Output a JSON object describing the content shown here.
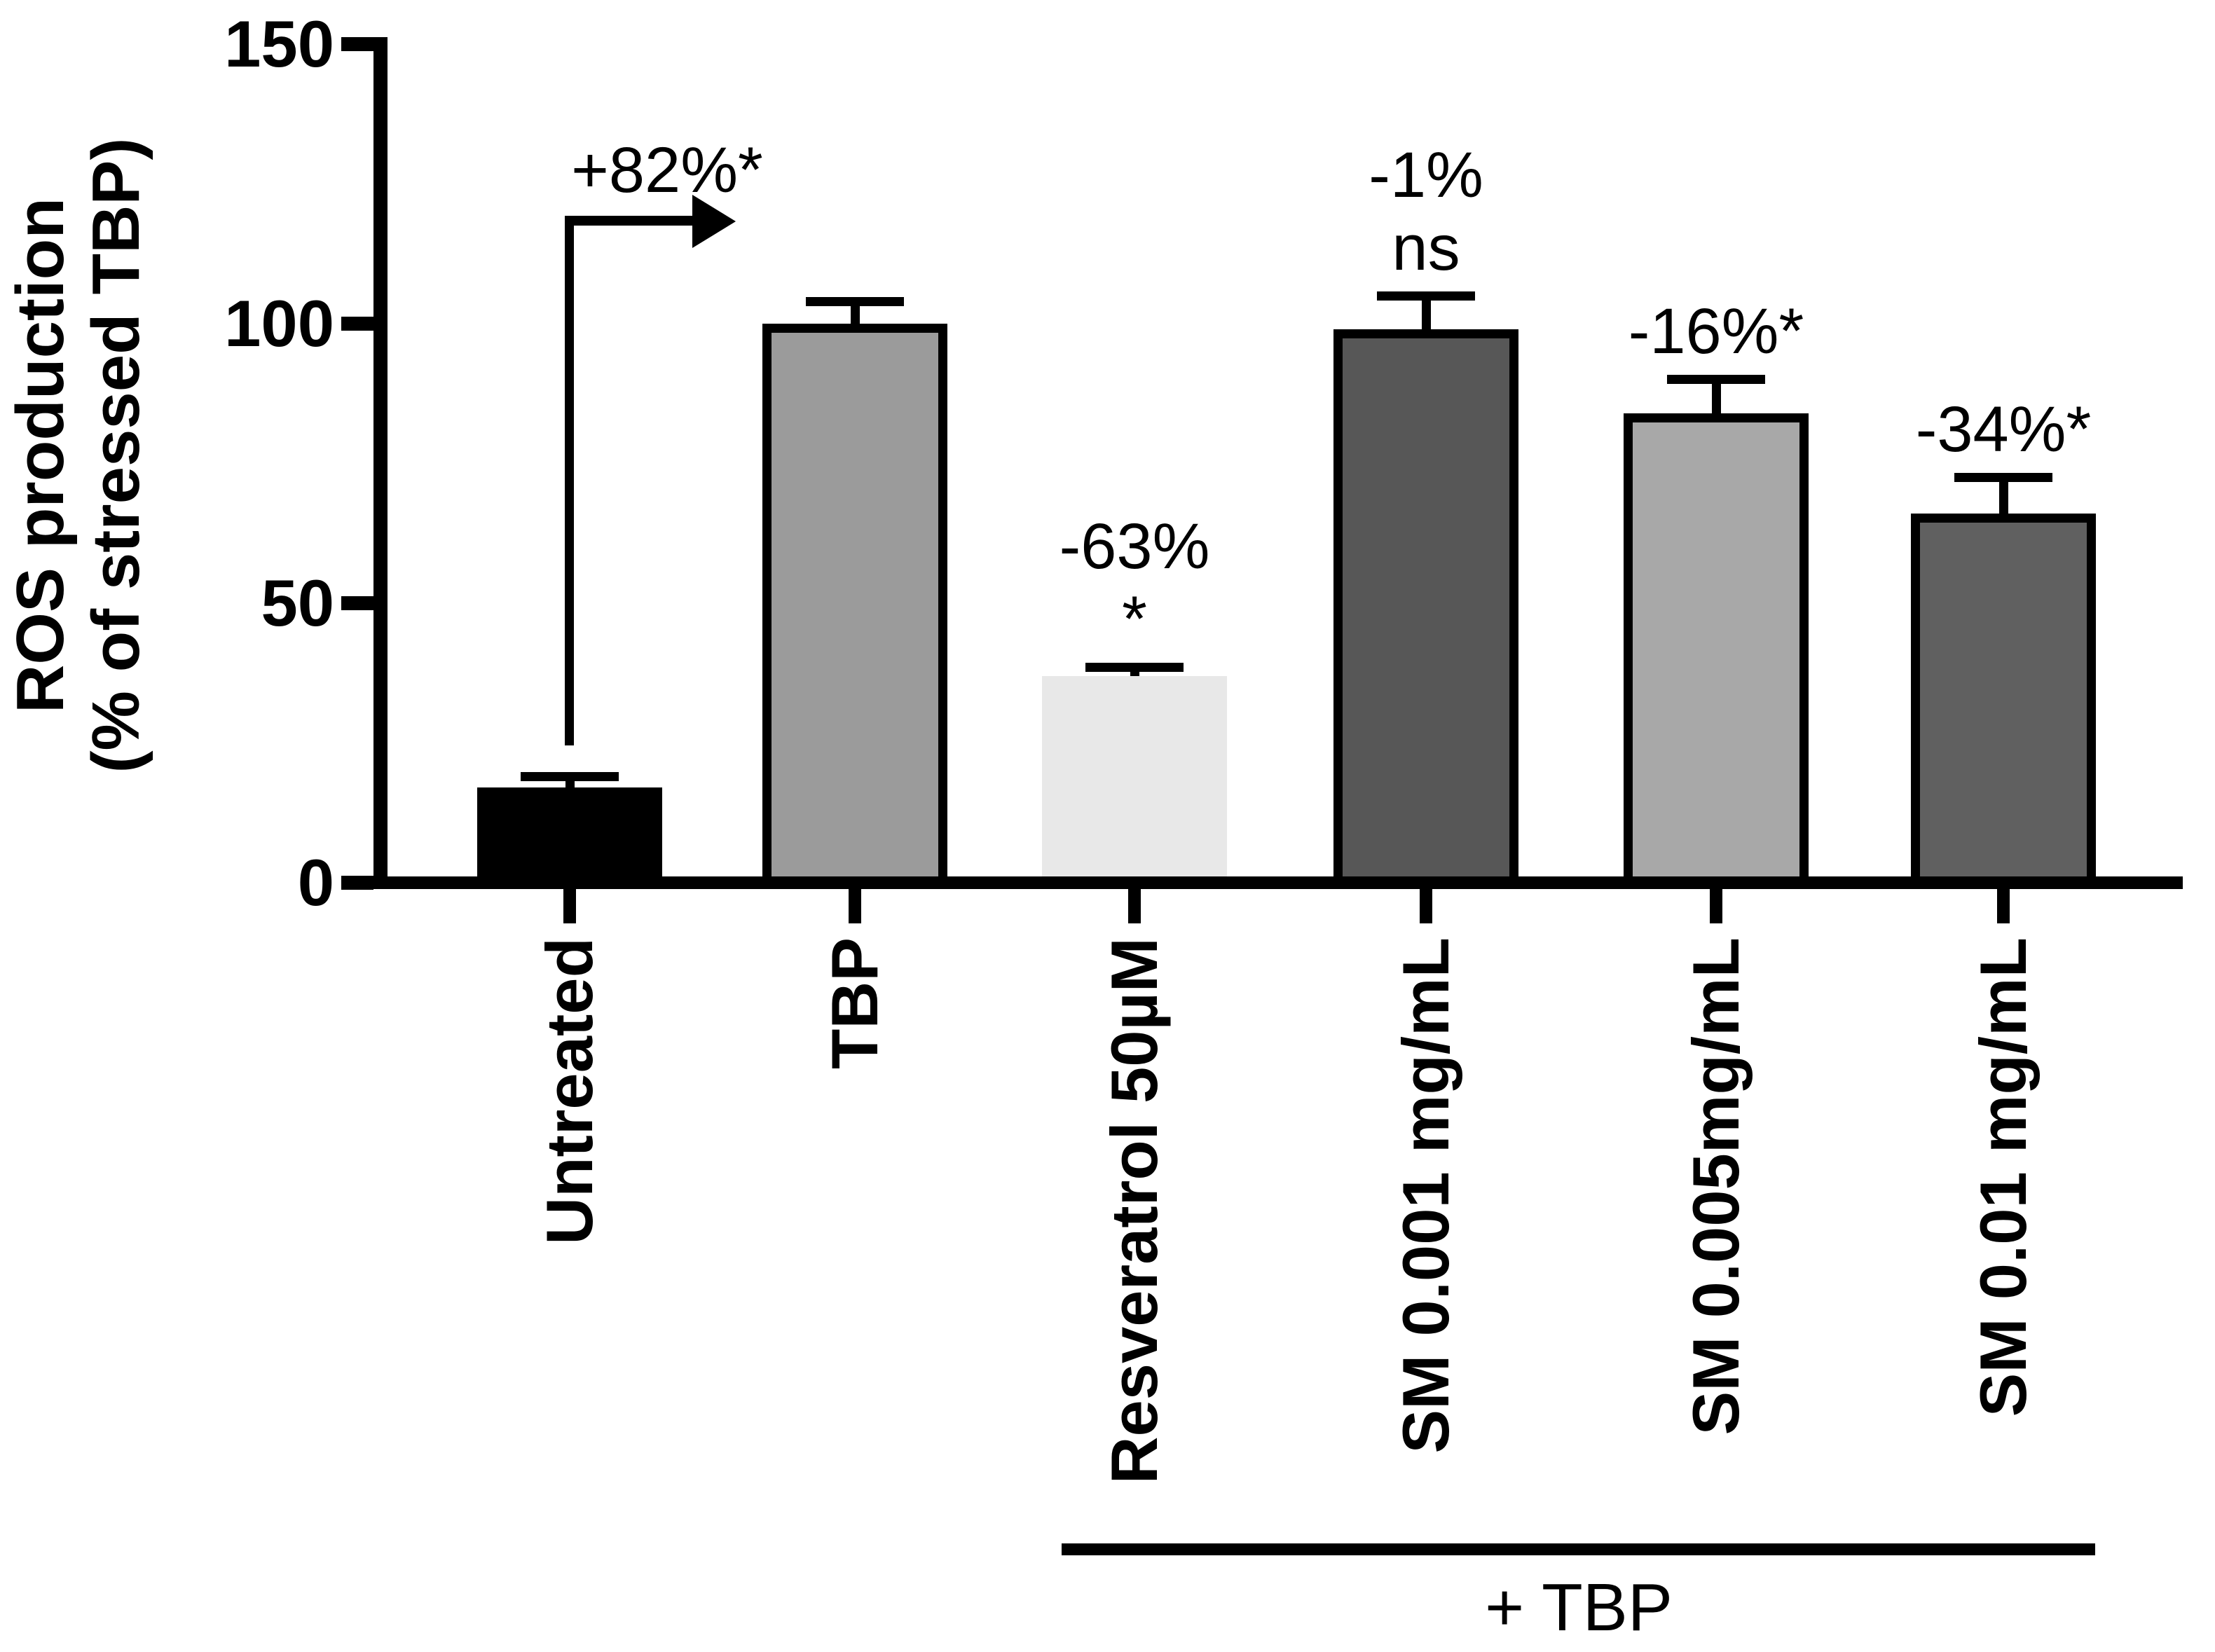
{
  "chart_data": {
    "type": "bar",
    "title": "",
    "ylabel_line1": "ROS production",
    "ylabel_line2": "(% of stressed TBP)",
    "xlabel": "",
    "ylim": [
      0,
      150
    ],
    "yticks": [
      0,
      50,
      100,
      150
    ],
    "grid": false,
    "legend_position": "none",
    "background_color": "#FFFFFF",
    "axis_color": "#000000",
    "categories": [
      "Untreated",
      "TBP",
      "Resveratrol 50µM",
      "SM 0.001 mg/mL",
      "SM 0.005mg/mL",
      "SM 0.01 mg/mL"
    ],
    "values": [
      17,
      100,
      37,
      99,
      84,
      66
    ],
    "errors_plus": [
      2,
      4,
      1.5,
      6,
      6,
      6.5
    ],
    "bar_colors": [
      "#000000",
      "#9B9B9B",
      "#E8E8E8",
      "#575757",
      "#A8A8A8",
      "#606060"
    ],
    "bar_border_px": [
      0,
      13,
      0,
      13,
      13,
      13
    ],
    "bar_border_color": "#000000",
    "bar_annotations": [
      [],
      [],
      [
        "-63%",
        "*"
      ],
      [
        "-1%",
        "ns"
      ],
      [
        "-16%*"
      ],
      [
        "-34%*"
      ]
    ],
    "increase_arrow": {
      "label": "+82%*",
      "from_category": "Untreated",
      "to_category": "TBP"
    },
    "group_bracket": {
      "label": "+ TBP",
      "from_category": "Resveratrol 50µM",
      "to_category": "SM 0.01 mg/mL"
    }
  }
}
